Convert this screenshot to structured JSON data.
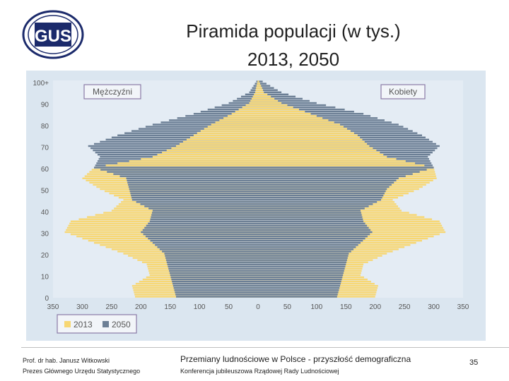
{
  "logo": {
    "text": "GUS",
    "icon": "gus-logo-icon"
  },
  "header": {
    "title_line1": "Piramida populacji (w tys.)",
    "title_line2": "2013, 2050"
  },
  "footer": {
    "author_line1": "Prof. dr hab. Janusz Witkowski",
    "author_line2": "Prezes Głównego Urzędu Statystycznego",
    "conf_line1": "Przemiany ludnościowe w Polsce -  przyszłość demograficzna",
    "conf_line2": "Konferencja jubileuszowa Rządowej Rady Ludnościowej",
    "page": "35"
  },
  "colors": {
    "y2013": "#f7d774",
    "y2050": "#6c7f95",
    "panel": "#dbe6f0",
    "label_box": "#8a7aa6"
  },
  "chart_data": {
    "type": "bar",
    "orientation": "horizontal-pyramid",
    "xlim": [
      -350,
      350
    ],
    "x_ticks": [
      "350",
      "300",
      "250",
      "200",
      "150",
      "100",
      "50",
      "0",
      "50",
      "100",
      "150",
      "200",
      "250",
      "300",
      "350"
    ],
    "y_ticks": [
      "0",
      "10",
      "20",
      "30",
      "40",
      "50",
      "60",
      "70",
      "80",
      "90",
      "100+"
    ],
    "left_label": "Mężczyźni",
    "right_label": "Kobiety",
    "legend": [
      "2013",
      "2050"
    ],
    "legend_position": "bottom-left",
    "ages": [
      0,
      5,
      10,
      15,
      20,
      25,
      30,
      35,
      40,
      45,
      50,
      55,
      60,
      65,
      70,
      75,
      80,
      85,
      90,
      95,
      100
    ],
    "series": [
      {
        "name": "2013",
        "men": [
          210,
          215,
          185,
          190,
          230,
          280,
          330,
          320,
          250,
          230,
          270,
          300,
          280,
          180,
          140,
          110,
          80,
          45,
          15,
          5,
          1
        ],
        "women": [
          200,
          205,
          175,
          180,
          220,
          270,
          320,
          310,
          245,
          230,
          275,
          305,
          300,
          220,
          190,
          170,
          140,
          90,
          40,
          10,
          2
        ]
      },
      {
        "name": "2050",
        "men": [
          140,
          145,
          150,
          155,
          160,
          180,
          200,
          185,
          180,
          215,
          220,
          225,
          280,
          270,
          290,
          240,
          180,
          110,
          50,
          15,
          3
        ],
        "women": [
          135,
          140,
          145,
          150,
          155,
          175,
          195,
          180,
          175,
          210,
          220,
          240,
          300,
          290,
          310,
          280,
          240,
          180,
          100,
          40,
          8
        ]
      }
    ]
  }
}
